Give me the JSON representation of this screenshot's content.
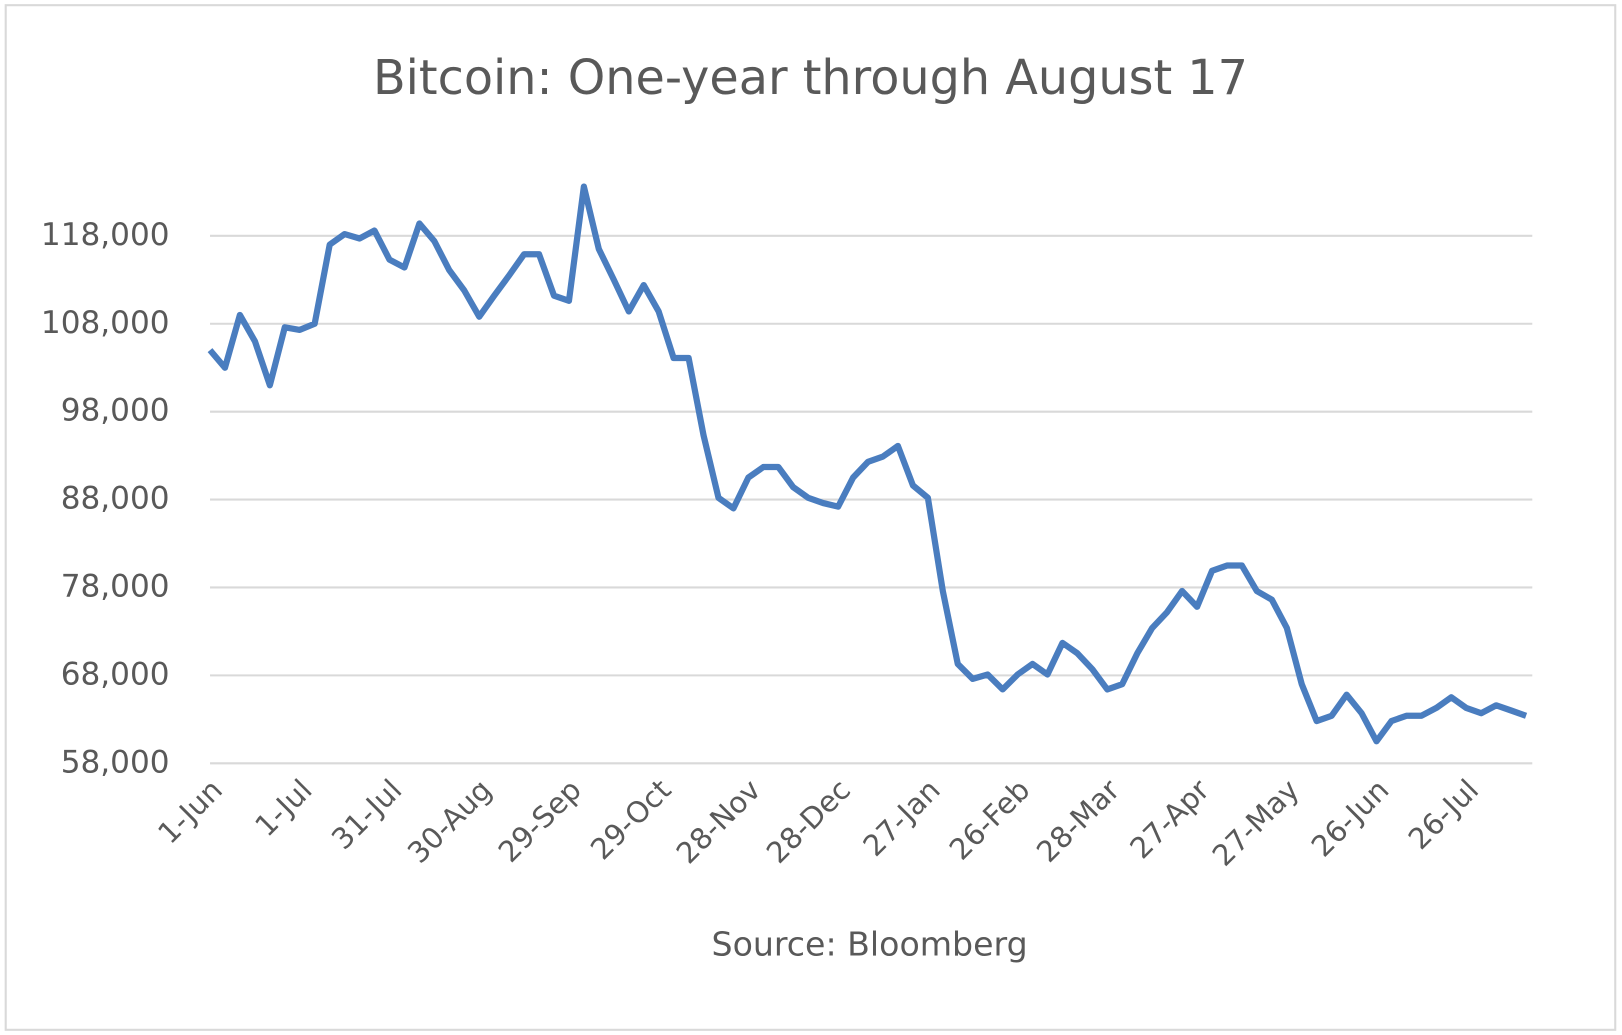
{
  "chart_data": {
    "type": "line",
    "title": "Bitcoin: One-year through August 17",
    "source": "Source: Bloomberg",
    "x": [
      "1-Jun",
      "6-Jun",
      "11-Jun",
      "16-Jun",
      "21-Jun",
      "26-Jun",
      "1-Jul",
      "6-Jul",
      "11-Jul",
      "16-Jul",
      "21-Jul",
      "26-Jul",
      "31-Jul",
      "5-Aug",
      "10-Aug",
      "15-Aug",
      "20-Aug",
      "25-Aug",
      "30-Aug",
      "4-Sep",
      "9-Sep",
      "14-Sep",
      "19-Sep",
      "24-Sep",
      "29-Sep",
      "4-Oct",
      "9-Oct",
      "14-Oct",
      "19-Oct",
      "24-Oct",
      "29-Oct",
      "3-Nov",
      "8-Nov",
      "13-Nov",
      "18-Nov",
      "23-Nov",
      "28-Nov",
      "3-Dec",
      "8-Dec",
      "13-Dec",
      "18-Dec",
      "23-Dec",
      "28-Dec",
      "2-Jan",
      "7-Jan",
      "12-Jan",
      "17-Jan",
      "22-Jan",
      "27-Jan",
      "1-Feb",
      "6-Feb",
      "11-Feb",
      "16-Feb",
      "21-Feb",
      "26-Feb",
      "3-Mar",
      "8-Mar",
      "13-Mar",
      "18-Mar",
      "23-Mar",
      "28-Mar",
      "2-Apr",
      "7-Apr",
      "12-Apr",
      "17-Apr",
      "22-Apr",
      "27-Apr",
      "2-May",
      "7-May",
      "12-May",
      "17-May",
      "22-May",
      "27-May",
      "1-Jun",
      "6-Jun",
      "11-Jun",
      "16-Jun",
      "21-Jun",
      "26-Jun",
      "1-Jul",
      "6-Jul",
      "11-Jul",
      "16-Jul",
      "21-Jul",
      "26-Jul",
      "31-Jul",
      "5-Aug",
      "10-Aug",
      "15-Aug"
    ],
    "series": [
      {
        "color": "#4a7dbf",
        "values": [
          105000,
          103000,
          109000,
          106000,
          101000,
          107600,
          107300,
          108000,
          117000,
          118200,
          117700,
          118600,
          115300,
          114400,
          119400,
          117400,
          114100,
          111800,
          108800,
          111200,
          113500,
          115900,
          115900,
          111200,
          110600,
          123600,
          116500,
          113000,
          109400,
          112400,
          109400,
          104100,
          104100,
          95300,
          88200,
          87000,
          90500,
          91700,
          91700,
          89400,
          88200,
          87600,
          87200,
          90500,
          92300,
          92900,
          94100,
          89600,
          88200,
          77600,
          69300,
          67600,
          68100,
          66400,
          68100,
          69300,
          68100,
          71700,
          70500,
          68700,
          66400,
          67000,
          70500,
          73400,
          75200,
          77600,
          75800,
          79900,
          80500,
          80500,
          77600,
          76600,
          73400,
          67000,
          62800,
          63400,
          65800,
          63700,
          60500,
          62800,
          63400,
          63400,
          64300,
          65500,
          64300,
          63700,
          64600,
          64000,
          63400
        ]
      }
    ],
    "xticks": [
      {
        "value": 0,
        "label": "1-Jun"
      },
      {
        "value": 6,
        "label": "1-Jul"
      },
      {
        "value": 12,
        "label": "31-Jul"
      },
      {
        "value": 18,
        "label": "30-Aug"
      },
      {
        "value": 24,
        "label": "29-Sep"
      },
      {
        "value": 30,
        "label": "29-Oct"
      },
      {
        "value": 36,
        "label": "28-Nov"
      },
      {
        "value": 42,
        "label": "28-Dec"
      },
      {
        "value": 48,
        "label": "27-Jan"
      },
      {
        "value": 54,
        "label": "26-Feb"
      },
      {
        "value": 60,
        "label": "28-Mar"
      },
      {
        "value": 66,
        "label": "27-Apr"
      },
      {
        "value": 72,
        "label": "27-May"
      },
      {
        "value": 78,
        "label": "26-Jun"
      },
      {
        "value": 84,
        "label": "26-Jul"
      }
    ],
    "ylim": [
      58000,
      126000
    ],
    "yticks": [
      {
        "value": 58000,
        "label": "58,000"
      },
      {
        "value": 68000,
        "label": "68,000"
      },
      {
        "value": 78000,
        "label": "78,000"
      },
      {
        "value": 88000,
        "label": "88,000"
      },
      {
        "value": 98000,
        "label": "98,000"
      },
      {
        "value": 108000,
        "label": "108,000"
      },
      {
        "value": 118000,
        "label": "118,000"
      }
    ],
    "grid": true
  }
}
